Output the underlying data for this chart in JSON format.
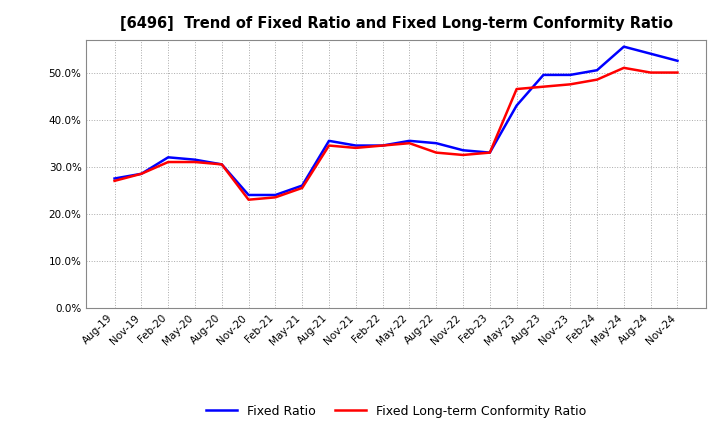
{
  "title": "[6496]  Trend of Fixed Ratio and Fixed Long-term Conformity Ratio",
  "x_labels": [
    "Aug-19",
    "Nov-19",
    "Feb-20",
    "May-20",
    "Aug-20",
    "Nov-20",
    "Feb-21",
    "May-21",
    "Aug-21",
    "Nov-21",
    "Feb-22",
    "May-22",
    "Aug-22",
    "Nov-22",
    "Feb-23",
    "May-23",
    "Aug-23",
    "Nov-23",
    "Feb-24",
    "May-24",
    "Aug-24",
    "Nov-24"
  ],
  "fixed_ratio": [
    27.5,
    28.5,
    32.0,
    31.5,
    30.5,
    24.0,
    24.0,
    26.0,
    35.5,
    34.5,
    34.5,
    35.5,
    35.0,
    33.5,
    33.0,
    43.0,
    49.5,
    49.5,
    50.5,
    55.5,
    54.0,
    52.5
  ],
  "fixed_lt_ratio": [
    27.0,
    28.5,
    31.0,
    31.0,
    30.5,
    23.0,
    23.5,
    25.5,
    34.5,
    34.0,
    34.5,
    35.0,
    33.0,
    32.5,
    33.0,
    46.5,
    47.0,
    47.5,
    48.5,
    51.0,
    50.0,
    50.0
  ],
  "fixed_ratio_color": "#0000FF",
  "fixed_lt_ratio_color": "#FF0000",
  "ylim": [
    0,
    57
  ],
  "yticks": [
    0,
    10,
    20,
    30,
    40,
    50
  ],
  "background_color": "#FFFFFF",
  "plot_bg_color": "#FFFFFF",
  "grid_color": "#AAAAAA",
  "legend_fixed": "Fixed Ratio",
  "legend_lt": "Fixed Long-term Conformity Ratio"
}
